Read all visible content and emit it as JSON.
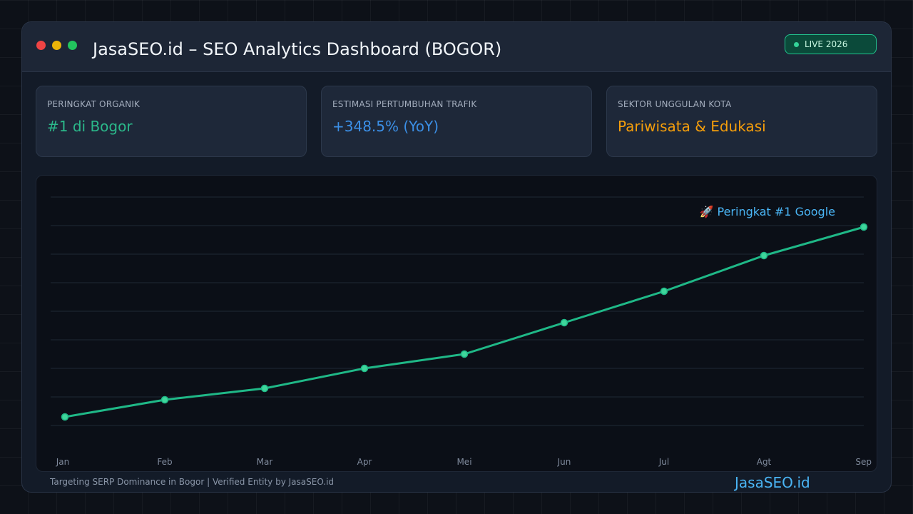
{
  "window": {
    "title": "JasaSEO.id – SEO Analytics Dashboard (BOGOR)",
    "live_badge": "LIVE 2026"
  },
  "cards": [
    {
      "label": "PERINGKAT ORGANIK",
      "value": "#1 di Bogor",
      "color": "#2bb88a"
    },
    {
      "label": "ESTIMASI PERTUMBUHAN TRAFIK",
      "value": "+348.5% (YoY)",
      "color": "#3b8fe6"
    },
    {
      "label": "SEKTOR UNGGULAN KOTA",
      "value": "Pariwisata & Edukasi",
      "color": "#f59e0b"
    }
  ],
  "chart_data": {
    "type": "line",
    "categories": [
      "Jan",
      "Feb",
      "Mar",
      "Apr",
      "Mei",
      "Jun",
      "Jul",
      "Agt",
      "Sep"
    ],
    "values": [
      1.3,
      1.9,
      2.3,
      3.0,
      3.5,
      4.6,
      5.7,
      6.95,
      7.95
    ],
    "ylim": [
      0,
      9
    ],
    "grid": true,
    "line_color": "#1fb887",
    "annotation": {
      "text": "🚀 Peringkat #1 Google",
      "category": "Sep",
      "color": "#4ab5f5"
    }
  },
  "footer": {
    "note": "Targeting SERP Dominance in Bogor | Verified Entity by JasaSEO.id",
    "brand": "JasaSEO.id"
  }
}
